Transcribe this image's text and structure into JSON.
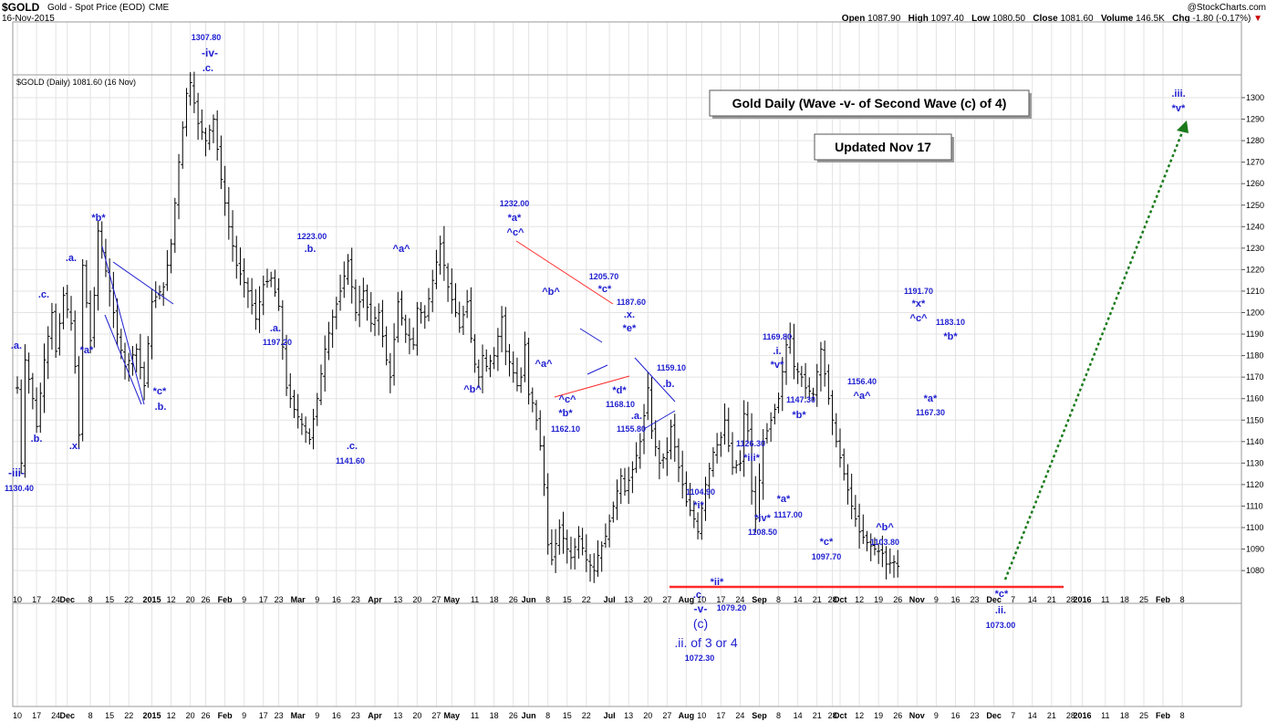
{
  "header": {
    "ticker": "$GOLD",
    "description": "Gold - Spot Price (EOD)",
    "exchange": "CME",
    "date": "16-Nov-2015",
    "credit": "@StockCharts.com",
    "open_label": "Open",
    "open": "1087.90",
    "high_label": "High",
    "high": "1097.40",
    "low_label": "Low",
    "low": "1080.50",
    "close_label": "Close",
    "close": "1081.60",
    "volume_label": "Volume",
    "volume": "146.5K",
    "chg_label": "Chg",
    "chg": "-1.80 (-0.17%)"
  },
  "colors": {
    "annotation": "#1f1fd0",
    "bars": "#000000",
    "grid": "#e3e3e3",
    "red_line": "#ff2a2a",
    "green_arrow": "#1a7a1a"
  },
  "chart_data": {
    "type": "bar",
    "legend": "$GOLD (Daily) 1081.60 (16 Nov)",
    "ylim": [
      1070,
      1310
    ],
    "yticks": [
      1080,
      1090,
      1100,
      1110,
      1120,
      1130,
      1140,
      1150,
      1160,
      1170,
      1180,
      1190,
      1200,
      1210,
      1220,
      1230,
      1240,
      1250,
      1260,
      1270,
      1280,
      1290,
      1300
    ],
    "grid": true,
    "x_tick_labels": [
      {
        "i": 0,
        "t": "10"
      },
      {
        "i": 5,
        "t": "17"
      },
      {
        "i": 10,
        "t": "24"
      },
      {
        "i": 13,
        "t": "Dec",
        "bold": true
      },
      {
        "i": 19,
        "t": "8"
      },
      {
        "i": 24,
        "t": "15"
      },
      {
        "i": 29,
        "t": "22"
      },
      {
        "i": 35,
        "t": "2015",
        "bold": true
      },
      {
        "i": 40,
        "t": "12"
      },
      {
        "i": 45,
        "t": "20"
      },
      {
        "i": 49,
        "t": "26"
      },
      {
        "i": 54,
        "t": "Feb",
        "bold": true
      },
      {
        "i": 59,
        "t": "9"
      },
      {
        "i": 64,
        "t": "17"
      },
      {
        "i": 68,
        "t": "23"
      },
      {
        "i": 73,
        "t": "Mar",
        "bold": true
      },
      {
        "i": 78,
        "t": "9"
      },
      {
        "i": 83,
        "t": "16"
      },
      {
        "i": 88,
        "t": "23"
      },
      {
        "i": 93,
        "t": "Apr",
        "bold": true
      },
      {
        "i": 99,
        "t": "13"
      },
      {
        "i": 104,
        "t": "20"
      },
      {
        "i": 109,
        "t": "27"
      },
      {
        "i": 113,
        "t": "May",
        "bold": true
      },
      {
        "i": 119,
        "t": "11"
      },
      {
        "i": 124,
        "t": "18"
      },
      {
        "i": 129,
        "t": "26"
      },
      {
        "i": 133,
        "t": "Jun",
        "bold": true
      },
      {
        "i": 138,
        "t": "8"
      },
      {
        "i": 143,
        "t": "15"
      },
      {
        "i": 148,
        "t": "22"
      },
      {
        "i": 154,
        "t": "Jul",
        "bold": true
      },
      {
        "i": 159,
        "t": "13"
      },
      {
        "i": 164,
        "t": "20"
      },
      {
        "i": 169,
        "t": "27"
      },
      {
        "i": 174,
        "t": "Aug",
        "bold": true
      },
      {
        "i": 178,
        "t": "10"
      },
      {
        "i": 183,
        "t": "17"
      },
      {
        "i": 188,
        "t": "24"
      },
      {
        "i": 193,
        "t": "Sep",
        "bold": true
      },
      {
        "i": 198,
        "t": "8"
      },
      {
        "i": 203,
        "t": "14"
      },
      {
        "i": 208,
        "t": "21"
      },
      {
        "i": 212,
        "t": "28"
      },
      {
        "i": 214,
        "t": "Oct",
        "bold": true
      },
      {
        "i": 219,
        "t": "12"
      },
      {
        "i": 224,
        "t": "19"
      },
      {
        "i": 229,
        "t": "26"
      },
      {
        "i": 234,
        "t": "Nov",
        "bold": true
      },
      {
        "i": 239,
        "t": "9"
      },
      {
        "i": 244,
        "t": "16"
      },
      {
        "i": 249,
        "t": "23"
      },
      {
        "i": 254,
        "t": "Dec",
        "bold": true
      },
      {
        "i": 259,
        "t": "7"
      },
      {
        "i": 264,
        "t": "14"
      },
      {
        "i": 269,
        "t": "21"
      },
      {
        "i": 274,
        "t": "28"
      },
      {
        "i": 277,
        "t": "2016",
        "bold": true
      },
      {
        "i": 283,
        "t": "11"
      },
      {
        "i": 288,
        "t": "18"
      },
      {
        "i": 293,
        "t": "25"
      },
      {
        "i": 298,
        "t": "Feb",
        "bold": true
      },
      {
        "i": 303,
        "t": "8"
      }
    ],
    "price_anchors": [
      [
        0,
        1165
      ],
      [
        1,
        1130
      ],
      [
        2,
        1178
      ],
      [
        4,
        1160
      ],
      [
        5,
        1147
      ],
      [
        7,
        1178
      ],
      [
        9,
        1200
      ],
      [
        10,
        1182
      ],
      [
        12,
        1208
      ],
      [
        14,
        1195
      ],
      [
        15,
        1175
      ],
      [
        16,
        1143
      ],
      [
        17,
        1222
      ],
      [
        19,
        1187
      ],
      [
        20,
        1208
      ],
      [
        21,
        1238
      ],
      [
        24,
        1210
      ],
      [
        26,
        1190
      ],
      [
        28,
        1175
      ],
      [
        31,
        1183
      ],
      [
        33,
        1166
      ],
      [
        35,
        1205
      ],
      [
        38,
        1212
      ],
      [
        40,
        1232
      ],
      [
        42,
        1270
      ],
      [
        44,
        1302
      ],
      [
        45,
        1307
      ],
      [
        47,
        1288
      ],
      [
        49,
        1280
      ],
      [
        51,
        1290
      ],
      [
        53,
        1262
      ],
      [
        55,
        1240
      ],
      [
        57,
        1222
      ],
      [
        60,
        1210
      ],
      [
        62,
        1197
      ],
      [
        64,
        1213
      ],
      [
        66,
        1216
      ],
      [
        68,
        1203
      ],
      [
        70,
        1165
      ],
      [
        72,
        1155
      ],
      [
        74,
        1148
      ],
      [
        76,
        1141
      ],
      [
        78,
        1160
      ],
      [
        80,
        1183
      ],
      [
        82,
        1198
      ],
      [
        84,
        1210
      ],
      [
        86,
        1224
      ],
      [
        88,
        1200
      ],
      [
        90,
        1210
      ],
      [
        92,
        1195
      ],
      [
        94,
        1200
      ],
      [
        96,
        1178
      ],
      [
        97,
        1170
      ],
      [
        99,
        1205
      ],
      [
        101,
        1190
      ],
      [
        103,
        1185
      ],
      [
        104,
        1202
      ],
      [
        106,
        1198
      ],
      [
        108,
        1215
      ],
      [
        110,
        1232
      ],
      [
        112,
        1212
      ],
      [
        114,
        1200
      ],
      [
        115,
        1193
      ],
      [
        117,
        1205
      ],
      [
        118,
        1188
      ],
      [
        119,
        1176
      ],
      [
        120,
        1170
      ],
      [
        121,
        1180
      ],
      [
        122,
        1175
      ],
      [
        124,
        1180
      ],
      [
        126,
        1198
      ],
      [
        127,
        1182
      ],
      [
        129,
        1172
      ],
      [
        130,
        1166
      ],
      [
        131,
        1170
      ],
      [
        132,
        1185
      ],
      [
        133,
        1162
      ],
      [
        134,
        1158
      ],
      [
        135,
        1150
      ],
      [
        136,
        1138
      ],
      [
        137,
        1120
      ],
      [
        138,
        1092
      ],
      [
        139,
        1085
      ],
      [
        141,
        1100
      ],
      [
        143,
        1090
      ],
      [
        144,
        1086
      ],
      [
        146,
        1096
      ],
      [
        148,
        1085
      ],
      [
        150,
        1080
      ],
      [
        151,
        1087
      ],
      [
        153,
        1096
      ],
      [
        155,
        1110
      ],
      [
        157,
        1124
      ],
      [
        158,
        1117
      ],
      [
        160,
        1127
      ],
      [
        162,
        1140
      ],
      [
        163,
        1152
      ],
      [
        164,
        1165
      ],
      [
        165,
        1145
      ],
      [
        167,
        1130
      ],
      [
        169,
        1135
      ],
      [
        170,
        1147
      ],
      [
        172,
        1128
      ],
      [
        174,
        1112
      ],
      [
        176,
        1104
      ],
      [
        177,
        1098
      ],
      [
        179,
        1120
      ],
      [
        181,
        1135
      ],
      [
        183,
        1142
      ],
      [
        184,
        1150
      ],
      [
        185,
        1138
      ],
      [
        186,
        1128
      ],
      [
        188,
        1130
      ],
      [
        189,
        1153
      ],
      [
        190,
        1145
      ],
      [
        191,
        1117
      ],
      [
        192,
        1104
      ],
      [
        194,
        1140
      ],
      [
        196,
        1150
      ],
      [
        198,
        1160
      ],
      [
        200,
        1185
      ],
      [
        201,
        1189
      ],
      [
        202,
        1175
      ],
      [
        204,
        1170
      ],
      [
        205,
        1165
      ],
      [
        207,
        1162
      ],
      [
        209,
        1183
      ],
      [
        211,
        1160
      ],
      [
        213,
        1140
      ],
      [
        215,
        1125
      ],
      [
        217,
        1110
      ],
      [
        219,
        1098
      ],
      [
        221,
        1093
      ],
      [
        223,
        1090
      ],
      [
        225,
        1088
      ],
      [
        226,
        1083
      ],
      [
        228,
        1084
      ],
      [
        229,
        1082
      ]
    ],
    "annotations": [
      {
        "t": "1307.80",
        "x": 226,
        "y": 44,
        "b": true,
        "s": 9
      },
      {
        "t": "-iv-",
        "x": 230,
        "y": 62,
        "b": true,
        "s": 12
      },
      {
        "t": ".c.",
        "x": 228,
        "y": 78,
        "b": true,
        "s": 11
      },
      {
        "t": ".a.",
        "x": 18,
        "y": 382,
        "b": true,
        "s": 11
      },
      {
        "t": ".b.",
        "x": 40,
        "y": 484,
        "b": true,
        "s": 11
      },
      {
        "t": "-iii-",
        "x": 18,
        "y": 522,
        "b": true,
        "s": 12
      },
      {
        "t": "1130.40",
        "x": 21,
        "y": 538,
        "b": true,
        "s": 9
      },
      {
        "t": ".c.",
        "x": 48,
        "y": 326,
        "b": true,
        "s": 11
      },
      {
        "t": ".a.",
        "x": 78,
        "y": 286,
        "b": true,
        "s": 11
      },
      {
        "t": "*a*",
        "x": 95,
        "y": 387,
        "b": true,
        "s": 11
      },
      {
        "t": ".x.",
        "x": 82,
        "y": 492,
        "b": true,
        "s": 11
      },
      {
        "t": "*b*",
        "x": 108,
        "y": 242,
        "b": true,
        "s": 11
      },
      {
        "t": "*c*",
        "x": 175,
        "y": 432,
        "b": true,
        "s": 11
      },
      {
        "t": ".b.",
        "x": 176,
        "y": 449,
        "b": true,
        "s": 11
      },
      {
        "t": "1223.00",
        "x": 342,
        "y": 262,
        "b": true,
        "s": 9
      },
      {
        "t": ".b.",
        "x": 340,
        "y": 276,
        "b": true,
        "s": 11
      },
      {
        "t": ".a.",
        "x": 302,
        "y": 363,
        "b": true,
        "s": 11
      },
      {
        "t": "1197.20",
        "x": 304,
        "y": 378,
        "b": true,
        "s": 9
      },
      {
        "t": ".c.",
        "x": 386,
        "y": 492,
        "b": true,
        "s": 11
      },
      {
        "t": "1141.60",
        "x": 384,
        "y": 508,
        "b": true,
        "s": 9
      },
      {
        "t": "^a^",
        "x": 440,
        "y": 276,
        "b": true,
        "s": 11
      },
      {
        "t": "^b^",
        "x": 518,
        "y": 430,
        "b": true,
        "s": 11
      },
      {
        "t": "1232.00",
        "x": 564,
        "y": 226,
        "b": true,
        "s": 9
      },
      {
        "t": "*a*",
        "x": 564,
        "y": 242,
        "b": true,
        "s": 11
      },
      {
        "t": "^c^",
        "x": 565,
        "y": 258,
        "b": true,
        "s": 11
      },
      {
        "t": "^b^",
        "x": 604,
        "y": 323,
        "b": true,
        "s": 11
      },
      {
        "t": "^a^",
        "x": 596,
        "y": 402,
        "b": true,
        "s": 11
      },
      {
        "t": "^c^",
        "x": 622,
        "y": 441,
        "b": true,
        "s": 11
      },
      {
        "t": "*b*",
        "x": 620,
        "y": 456,
        "b": true,
        "s": 11
      },
      {
        "t": "1162.10",
        "x": 620,
        "y": 473,
        "b": true,
        "s": 9
      },
      {
        "t": "1205.70",
        "x": 662,
        "y": 306,
        "b": true,
        "s": 9
      },
      {
        "t": "*c*",
        "x": 663,
        "y": 320,
        "b": true,
        "s": 11
      },
      {
        "t": "1187.60",
        "x": 692,
        "y": 334,
        "b": true,
        "s": 9
      },
      {
        "t": ".x.",
        "x": 690,
        "y": 348,
        "b": true,
        "s": 11
      },
      {
        "t": "*e*",
        "x": 690,
        "y": 363,
        "b": true,
        "s": 11
      },
      {
        "t": "*d*",
        "x": 679,
        "y": 431,
        "b": true,
        "s": 11
      },
      {
        "t": "1168.10",
        "x": 680,
        "y": 446,
        "b": true,
        "s": 9
      },
      {
        "t": "1159.10",
        "x": 736,
        "y": 406,
        "b": true,
        "s": 9
      },
      {
        "t": ".b.",
        "x": 733,
        "y": 424,
        "b": true,
        "s": 11
      },
      {
        "t": ".a.",
        "x": 698,
        "y": 459,
        "b": true,
        "s": 11
      },
      {
        "t": "1155.80",
        "x": 692,
        "y": 473,
        "b": true,
        "s": 9
      },
      {
        "t": "1104.90",
        "x": 768,
        "y": 542,
        "b": true,
        "s": 9
      },
      {
        "t": "*i*",
        "x": 766,
        "y": 557,
        "b": true,
        "s": 11
      },
      {
        "t": "*ii*",
        "x": 786,
        "y": 641,
        "b": true,
        "s": 11
      },
      {
        "t": ".c.",
        "x": 766,
        "y": 655,
        "b": true,
        "s": 11
      },
      {
        "t": "-v-",
        "x": 768,
        "y": 671,
        "b": true,
        "s": 12
      },
      {
        "t": "1079.20",
        "x": 802,
        "y": 669,
        "b": true,
        "s": 9
      },
      {
        "t": "(c)",
        "x": 768,
        "y": 688,
        "b": false,
        "s": 14
      },
      {
        "t": ".ii. of 3 or 4",
        "x": 774,
        "y": 709,
        "b": false,
        "s": 14
      },
      {
        "t": "1072.30",
        "x": 767,
        "y": 724,
        "b": true,
        "s": 9
      },
      {
        "t": "1126.30",
        "x": 823,
        "y": 489,
        "b": true,
        "s": 9
      },
      {
        "t": "*iii*",
        "x": 824,
        "y": 505,
        "b": true,
        "s": 11
      },
      {
        "t": "*iv*",
        "x": 836,
        "y": 571,
        "b": true,
        "s": 11
      },
      {
        "t": "1108.50",
        "x": 836,
        "y": 586,
        "b": true,
        "s": 9
      },
      {
        "t": "1169.80",
        "x": 852,
        "y": 372,
        "b": true,
        "s": 9
      },
      {
        "t": ".i.",
        "x": 852,
        "y": 388,
        "b": true,
        "s": 11
      },
      {
        "t": "*v*",
        "x": 852,
        "y": 403,
        "b": true,
        "s": 11
      },
      {
        "t": "1147.30",
        "x": 878,
        "y": 441,
        "b": true,
        "s": 9
      },
      {
        "t": "*b*",
        "x": 876,
        "y": 458,
        "b": true,
        "s": 11
      },
      {
        "t": "*a*",
        "x": 859,
        "y": 550,
        "b": true,
        "s": 11
      },
      {
        "t": "1117.00",
        "x": 864,
        "y": 567,
        "b": true,
        "s": 9
      },
      {
        "t": "*c*",
        "x": 906,
        "y": 597,
        "b": true,
        "s": 11
      },
      {
        "t": "1097.70",
        "x": 906,
        "y": 613,
        "b": true,
        "s": 9
      },
      {
        "t": "1156.40",
        "x": 945,
        "y": 421,
        "b": true,
        "s": 9
      },
      {
        "t": "^a^",
        "x": 945,
        "y": 437,
        "b": true,
        "s": 11
      },
      {
        "t": "^b^",
        "x": 970,
        "y": 581,
        "b": true,
        "s": 11
      },
      {
        "t": "1103.80",
        "x": 970,
        "y": 597,
        "b": true,
        "s": 9
      },
      {
        "t": "1191.70",
        "x": 1007,
        "y": 322,
        "b": true,
        "s": 9
      },
      {
        "t": "*x*",
        "x": 1007,
        "y": 336,
        "b": true,
        "s": 11
      },
      {
        "t": "^c^",
        "x": 1007,
        "y": 352,
        "b": true,
        "s": 11
      },
      {
        "t": "1183.10",
        "x": 1042,
        "y": 356,
        "b": true,
        "s": 9
      },
      {
        "t": "*b*",
        "x": 1042,
        "y": 372,
        "b": true,
        "s": 11
      },
      {
        "t": "*a*",
        "x": 1020,
        "y": 440,
        "b": true,
        "s": 11
      },
      {
        "t": "1167.30",
        "x": 1020,
        "y": 455,
        "b": true,
        "s": 9
      },
      {
        "t": "*c*",
        "x": 1098,
        "y": 654,
        "b": true,
        "s": 11
      },
      {
        "t": ".ii.",
        "x": 1097,
        "y": 672,
        "b": true,
        "s": 11
      },
      {
        "t": "1073.00",
        "x": 1097,
        "y": 688,
        "b": true,
        "s": 9
      },
      {
        "t": ".iii.",
        "x": 1292,
        "y": 106,
        "b": true,
        "s": 11
      },
      {
        "t": "*v*",
        "x": 1292,
        "y": 122,
        "b": true,
        "s": 11
      }
    ],
    "titles": [
      {
        "t": "Gold Daily (Wave -v- of Second Wave (c) of 4)"
      },
      {
        "t": "Updated Nov 17"
      }
    ]
  }
}
